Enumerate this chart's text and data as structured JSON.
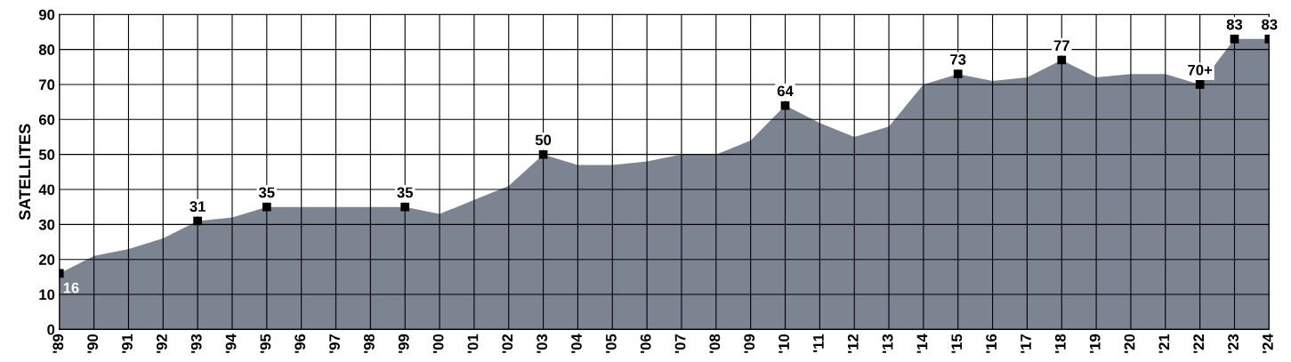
{
  "chart_data": {
    "type": "area",
    "ylabel": "SATELLITES",
    "categories": [
      "'89",
      "'90",
      "'91",
      "'92",
      "'93",
      "'94",
      "'95",
      "'96",
      "'97",
      "'98",
      "'99",
      "'00",
      "'01",
      "'02",
      "'03",
      "'04",
      "'05",
      "'06",
      "'07",
      "'08",
      "'09",
      "'10",
      "'11",
      "'12",
      "'13",
      "'14",
      "'15",
      "'16",
      "'17",
      "'18",
      "'19",
      "'20",
      "'21",
      "'22",
      "'23",
      "'24"
    ],
    "series": [
      {
        "color": "#7d8491",
        "values": [
          16,
          21,
          23,
          26,
          31,
          32,
          35,
          35,
          35,
          35,
          35,
          33,
          37,
          41,
          50,
          47,
          47,
          48,
          50,
          50,
          54,
          64,
          59,
          55,
          58,
          70,
          73,
          71,
          72,
          77,
          72,
          73,
          73,
          70,
          83,
          83
        ],
        "value_labels": [
          "16",
          null,
          null,
          null,
          "31",
          null,
          "35",
          null,
          null,
          null,
          "35",
          null,
          null,
          null,
          "50",
          null,
          null,
          null,
          null,
          null,
          null,
          "64",
          null,
          null,
          null,
          null,
          "73",
          null,
          null,
          "77",
          null,
          null,
          null,
          "70+",
          "83",
          "83"
        ]
      }
    ],
    "ylim": [
      0,
      90
    ],
    "yticks": [
      0,
      10,
      20,
      30,
      40,
      50,
      60,
      70,
      80,
      90
    ],
    "grid": true
  }
}
